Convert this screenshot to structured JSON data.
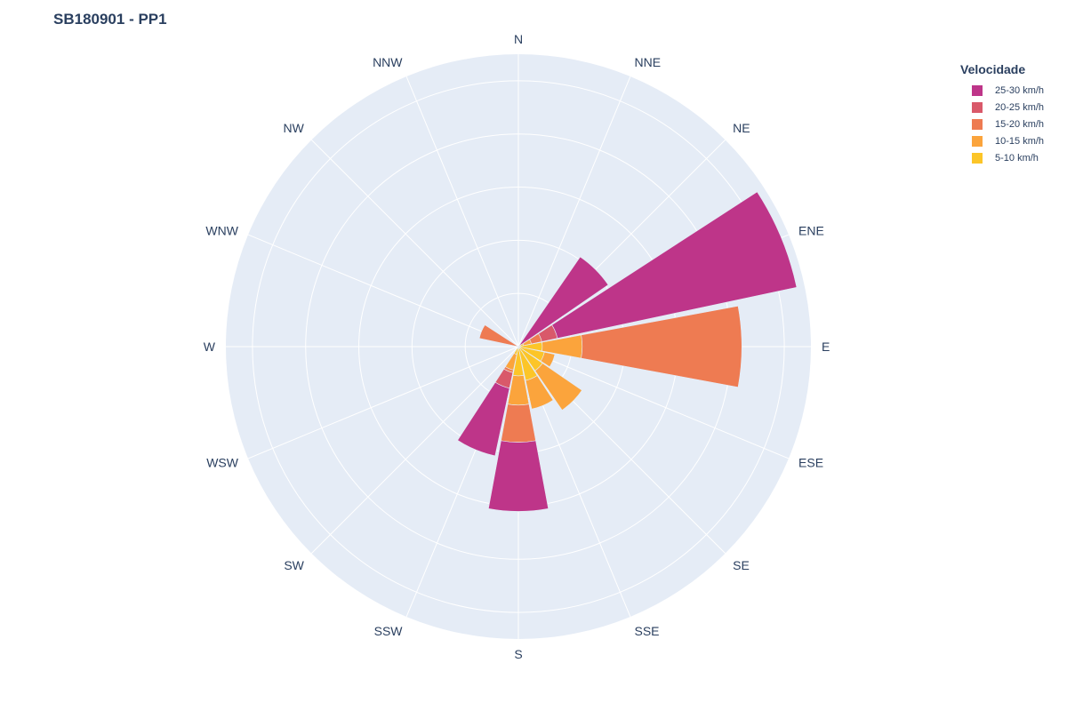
{
  "chart_data": {
    "type": "barpolar",
    "title": "SB180901 - PP1",
    "directions": [
      "N",
      "NNE",
      "NE",
      "ENE",
      "E",
      "ESE",
      "SE",
      "SSE",
      "S",
      "SSW",
      "SW",
      "WSW",
      "W",
      "WNW",
      "NW",
      "NNW"
    ],
    "legend": {
      "title": "Velocidade",
      "position": "top-right"
    },
    "radial_range": [
      0,
      5.5
    ],
    "radial_tick_step": 1,
    "series": [
      {
        "name": "5-10 km/h",
        "color": "#fcc528",
        "values": [
          0,
          0,
          0,
          0.1,
          0.45,
          0.5,
          0.55,
          0.65,
          0.55,
          0.15,
          0,
          0,
          0,
          0,
          0,
          0
        ]
      },
      {
        "name": "10-15 km/h",
        "color": "#fba43c",
        "values": [
          0,
          0,
          0,
          0.15,
          0.75,
          0.2,
          0.9,
          0.55,
          0.55,
          0.3,
          0,
          0,
          0,
          0,
          0,
          0
        ]
      },
      {
        "name": "15-20 km/h",
        "color": "#ee7b52",
        "values": [
          0,
          0,
          0,
          0.2,
          3.0,
          0,
          0,
          0,
          0.7,
          0.05,
          0,
          0,
          0,
          0.75,
          0,
          0
        ]
      },
      {
        "name": "20-25 km/h",
        "color": "#d9596a",
        "values": [
          0,
          0,
          0.05,
          0.3,
          0,
          0,
          0,
          0,
          0,
          0.3,
          0,
          0,
          0,
          0,
          0,
          0
        ]
      },
      {
        "name": "25-30 km/h",
        "color": "#be3589",
        "values": [
          0,
          0,
          2.0,
          4.6,
          0,
          0,
          0,
          0,
          1.3,
          1.3,
          0,
          0,
          0,
          0,
          0,
          0
        ]
      }
    ]
  }
}
